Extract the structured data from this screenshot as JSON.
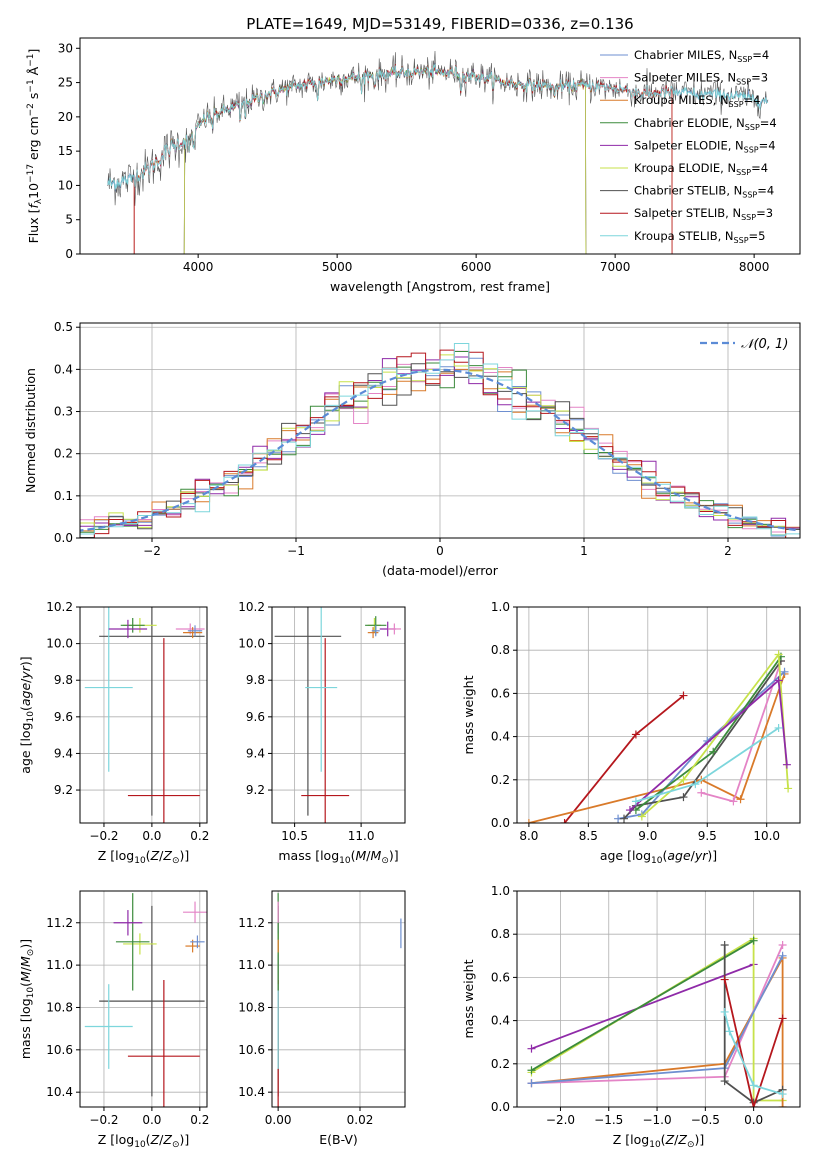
{
  "chart_data": [
    {
      "id": "spectrum",
      "type": "line",
      "title": "PLATE=1649, MJD=53149, FIBERID=0336, z=0.136",
      "xlabel": "wavelength [Angstrom, rest frame]",
      "ylabel": "Flux [fλ10⁻¹⁷ erg cm⁻² s⁻¹ Å⁻¹]",
      "xlim": [
        3150,
        8330
      ],
      "ylim": [
        0,
        31.5
      ],
      "xticks": [
        4000,
        5000,
        6000,
        7000,
        8000
      ],
      "yticks": [
        0,
        5,
        10,
        15,
        20,
        25,
        30
      ],
      "continuum": [
        [
          3350,
          10.2
        ],
        [
          3500,
          10.8
        ],
        [
          3650,
          12.5
        ],
        [
          3800,
          15.5
        ],
        [
          3950,
          17.0
        ],
        [
          4050,
          19.8
        ],
        [
          4200,
          21.0
        ],
        [
          4400,
          22.5
        ],
        [
          4600,
          24.0
        ],
        [
          4800,
          24.8
        ],
        [
          5000,
          25.5
        ],
        [
          5200,
          26.0
        ],
        [
          5400,
          26.3
        ],
        [
          5600,
          26.6
        ],
        [
          5800,
          26.5
        ],
        [
          6000,
          26.0
        ],
        [
          6200,
          25.0
        ],
        [
          6400,
          24.6
        ],
        [
          6600,
          24.4
        ],
        [
          6800,
          24.6
        ],
        [
          7000,
          24.2
        ],
        [
          7200,
          23.4
        ],
        [
          7400,
          23.6
        ],
        [
          7600,
          23.4
        ],
        [
          7800,
          23.2
        ],
        [
          8000,
          22.6
        ],
        [
          8100,
          22.3
        ]
      ],
      "series": [
        {
          "name": "Chabrier MILES, N_SSP=4",
          "label_html": "Chabrier MILES, N<tspan font-size='8' dy='3'>SSP</tspan><tspan dy='-3'>=4</tspan>",
          "color": "#6e8fd0",
          "xrange": [
            3350,
            8100
          ]
        },
        {
          "name": "Salpeter MILES, N_SSP=3",
          "label_html": "Salpeter MILES, N<tspan font-size='8' dy='3'>SSP</tspan><tspan dy='-3'>=3</tspan>",
          "color": "#e484c6",
          "xrange": [
            3540,
            7410
          ]
        },
        {
          "name": "Kroupa MILES, N_SSP=4",
          "label_html": "Kroupa MILES, N<tspan font-size='8' dy='3'>SSP</tspan><tspan dy='-3'>=4</tspan>",
          "color": "#d97a2a",
          "xrange": [
            3540,
            7410
          ]
        },
        {
          "name": "Chabrier ELODIE, N_SSP=4",
          "label_html": "Chabrier ELODIE, N<tspan font-size='8' dy='3'>SSP</tspan><tspan dy='-3'>=4</tspan>",
          "color": "#3c8b3c",
          "xrange": [
            3900,
            6790
          ]
        },
        {
          "name": "Salpeter ELODIE, N_SSP=4",
          "label_html": "Salpeter ELODIE, N<tspan font-size='8' dy='3'>SSP</tspan><tspan dy='-3'>=4</tspan>",
          "color": "#8f2aa8",
          "xrange": [
            3900,
            6790
          ]
        },
        {
          "name": "Kroupa ELODIE, N_SSP=4",
          "label_html": "Kroupa ELODIE, N<tspan font-size='8' dy='3'>SSP</tspan><tspan dy='-3'>=4</tspan>",
          "color": "#c7e24a",
          "xrange": [
            3900,
            6790
          ]
        },
        {
          "name": "Chabrier STELIB, N_SSP=4",
          "label_html": "Chabrier STELIB, N<tspan font-size='8' dy='3'>SSP</tspan><tspan dy='-3'>=4</tspan>",
          "color": "#505050",
          "xrange": [
            3350,
            8100
          ]
        },
        {
          "name": "Salpeter STELIB, N_SSP=3",
          "label_html": "Salpeter STELIB, N<tspan font-size='8' dy='3'>SSP</tspan><tspan dy='-3'>=3</tspan>",
          "color": "#b5171d",
          "xrange": [
            3540,
            7410
          ]
        },
        {
          "name": "Kroupa STELIB, N_SSP=5",
          "label_html": "Kroupa STELIB, N<tspan font-size='8' dy='3'>SSP</tspan><tspan dy='-3'>=5</tspan>",
          "color": "#7dd6dc",
          "xrange": [
            3350,
            8100
          ]
        }
      ],
      "legend": "top-right"
    },
    {
      "id": "residuals",
      "type": "line",
      "xlabel": "(data-model)/error",
      "ylabel": "Normed distribution",
      "xlim": [
        -2.5,
        2.5
      ],
      "ylim": [
        0,
        0.51
      ],
      "xticks": [
        -2,
        -1,
        0,
        1,
        2
      ],
      "yticks": [
        0.0,
        0.1,
        0.2,
        0.3,
        0.4,
        0.5
      ],
      "grid": true,
      "bin_width": 0.1,
      "gaussian": {
        "label": "𝒩(0, 1)",
        "color": "#5b8bd6",
        "style": "dashed"
      },
      "legend": "top-right"
    },
    {
      "id": "age-vs-Z",
      "type": "scatter",
      "xlabel": "Z [log₁₀(Z/Z⊙)]",
      "ylabel": "age  [log₁₀(age/yr)]",
      "xlim": [
        -0.3,
        0.23
      ],
      "ylim": [
        9.02,
        10.2
      ],
      "xticks": [
        -0.2,
        0.0,
        0.2
      ],
      "yticks": [
        9.2,
        9.4,
        9.6,
        9.8,
        10.0,
        10.2
      ],
      "grid": true,
      "points": [
        {
          "x": 0.0,
          "y": 10.04,
          "xerr": 0.22,
          "yerr": 0.98,
          "color": "#505050"
        },
        {
          "x": 0.05,
          "y": 9.17,
          "xerr": 0.15,
          "yerr": 0.86,
          "color": "#b5171d"
        },
        {
          "x": -0.18,
          "y": 9.76,
          "xerr": 0.1,
          "yerr": 0.46,
          "color": "#7dd6dc"
        },
        {
          "x": -0.05,
          "y": 10.1,
          "xerr": 0.07,
          "yerr": 0.04,
          "color": "#c7e24a"
        },
        {
          "x": -0.08,
          "y": 10.1,
          "xerr": 0.05,
          "yerr": 0.04,
          "color": "#3c8b3c"
        },
        {
          "x": -0.1,
          "y": 10.08,
          "xerr": 0.08,
          "yerr": 0.05,
          "color": "#8f2aa8"
        },
        {
          "x": 0.16,
          "y": 10.08,
          "xerr": 0.06,
          "yerr": 0.03,
          "color": "#e484c6"
        },
        {
          "x": 0.17,
          "y": 10.06,
          "xerr": 0.04,
          "yerr": 0.03,
          "color": "#d97a2a"
        },
        {
          "x": 0.18,
          "y": 10.07,
          "xerr": 0.03,
          "yerr": 0.03,
          "color": "#6e8fd0"
        }
      ]
    },
    {
      "id": "age-vs-mass",
      "type": "scatter",
      "xlabel": "mass [log₁₀(M/M⊙)]",
      "ylim": [
        9.02,
        10.2
      ],
      "xlim": [
        10.33,
        11.33
      ],
      "xticks": [
        10.5,
        11.0
      ],
      "yticks": [
        9.2,
        9.4,
        9.6,
        9.8,
        10.0,
        10.2
      ],
      "grid": true,
      "points": [
        {
          "x": 10.6,
          "y": 10.04,
          "xerr": 0.25,
          "yerr": 0.98,
          "color": "#505050"
        },
        {
          "x": 10.73,
          "y": 9.17,
          "xerr": 0.18,
          "yerr": 0.86,
          "color": "#b5171d"
        },
        {
          "x": 10.7,
          "y": 9.76,
          "xerr": 0.12,
          "yerr": 0.46,
          "color": "#7dd6dc"
        },
        {
          "x": 11.1,
          "y": 10.1,
          "xerr": 0.05,
          "yerr": 0.04,
          "color": "#c7e24a"
        },
        {
          "x": 11.11,
          "y": 10.1,
          "xerr": 0.08,
          "yerr": 0.05,
          "color": "#3c8b3c"
        },
        {
          "x": 11.2,
          "y": 10.08,
          "xerr": 0.06,
          "yerr": 0.04,
          "color": "#8f2aa8"
        },
        {
          "x": 11.25,
          "y": 10.08,
          "xerr": 0.05,
          "yerr": 0.03,
          "color": "#e484c6"
        },
        {
          "x": 11.09,
          "y": 10.06,
          "xerr": 0.04,
          "yerr": 0.03,
          "color": "#d97a2a"
        },
        {
          "x": 11.11,
          "y": 10.07,
          "xerr": 0.03,
          "yerr": 0.03,
          "color": "#6e8fd0"
        }
      ]
    },
    {
      "id": "massweight-vs-age",
      "type": "line",
      "xlabel": "age  [log₁₀(age/yr)]",
      "ylabel": "mass weight",
      "xlim": [
        7.9,
        10.28
      ],
      "ylim": [
        0,
        1
      ],
      "xticks": [
        8.0,
        8.5,
        9.0,
        9.5,
        10.0
      ],
      "yticks": [
        0.0,
        0.2,
        0.4,
        0.6,
        0.8,
        1.0
      ],
      "grid": true,
      "series": [
        {
          "color": "#b5171d",
          "points": [
            [
              8.3,
              0.0
            ],
            [
              8.9,
              0.41
            ],
            [
              9.3,
              0.59
            ]
          ]
        },
        {
          "color": "#d97a2a",
          "points": [
            [
              8.0,
              0.0
            ],
            [
              9.45,
              0.2
            ],
            [
              9.78,
              0.11
            ],
            [
              10.15,
              0.69
            ]
          ]
        },
        {
          "color": "#e484c6",
          "points": [
            [
              9.45,
              0.14
            ],
            [
              9.72,
              0.1
            ],
            [
              10.12,
              0.75
            ]
          ]
        },
        {
          "color": "#6e8fd0",
          "points": [
            [
              8.75,
              0.02
            ],
            [
              8.95,
              0.04
            ],
            [
              9.5,
              0.38
            ],
            [
              10.15,
              0.7
            ]
          ]
        },
        {
          "color": "#505050",
          "points": [
            [
              8.8,
              0.02
            ],
            [
              8.9,
              0.08
            ],
            [
              9.3,
              0.12
            ],
            [
              10.12,
              0.75
            ]
          ]
        },
        {
          "color": "#3c8b3c",
          "points": [
            [
              8.9,
              0.06
            ],
            [
              9.55,
              0.33
            ],
            [
              10.12,
              0.77
            ]
          ]
        },
        {
          "color": "#c7e24a",
          "points": [
            [
              8.95,
              0.03
            ],
            [
              9.3,
              0.2
            ],
            [
              10.1,
              0.78
            ],
            [
              10.18,
              0.16
            ]
          ]
        },
        {
          "color": "#8f2aa8",
          "points": [
            [
              8.85,
              0.06
            ],
            [
              10.1,
              0.66
            ],
            [
              10.17,
              0.27
            ]
          ]
        },
        {
          "color": "#7dd6dc",
          "points": [
            [
              8.9,
              0.1
            ],
            [
              9.4,
              0.18
            ],
            [
              10.1,
              0.44
            ]
          ]
        }
      ]
    },
    {
      "id": "mass-vs-Z",
      "type": "scatter",
      "xlabel": "Z [log₁₀(Z/Z⊙)]",
      "ylabel": "mass [log₁₀(M/M⊙)]",
      "xlim": [
        -0.3,
        0.23
      ],
      "ylim": [
        10.33,
        11.35
      ],
      "xticks": [
        -0.2,
        0.0,
        0.2
      ],
      "yticks": [
        10.4,
        10.6,
        10.8,
        11.0,
        11.2
      ],
      "grid": true,
      "points": [
        {
          "x": 0.0,
          "y": 10.83,
          "xerr": 0.22,
          "yerr": 0.45,
          "color": "#505050"
        },
        {
          "x": 0.05,
          "y": 10.57,
          "xerr": 0.15,
          "yerr": 0.36,
          "color": "#b5171d"
        },
        {
          "x": -0.18,
          "y": 10.71,
          "xerr": 0.1,
          "yerr": 0.2,
          "color": "#7dd6dc"
        },
        {
          "x": -0.05,
          "y": 11.1,
          "xerr": 0.07,
          "yerr": 0.05,
          "color": "#c7e24a"
        },
        {
          "x": -0.08,
          "y": 11.11,
          "xerr": 0.07,
          "yerr": 0.23,
          "color": "#3c8b3c"
        },
        {
          "x": -0.1,
          "y": 11.2,
          "xerr": 0.06,
          "yerr": 0.06,
          "color": "#8f2aa8"
        },
        {
          "x": 0.18,
          "y": 11.25,
          "xerr": 0.05,
          "yerr": 0.05,
          "color": "#e484c6"
        },
        {
          "x": 0.17,
          "y": 11.09,
          "xerr": 0.03,
          "yerr": 0.03,
          "color": "#d97a2a"
        },
        {
          "x": 0.19,
          "y": 11.11,
          "xerr": 0.03,
          "yerr": 0.03,
          "color": "#6e8fd0"
        }
      ]
    },
    {
      "id": "mass-vs-ebv",
      "type": "scatter",
      "xlabel": "E(B-V)",
      "xlim": [
        -0.0015,
        0.031
      ],
      "ylim": [
        10.33,
        11.35
      ],
      "xticks": [
        0.0,
        0.02
      ],
      "yticks": [
        10.4,
        10.6,
        10.8,
        11.0,
        11.2
      ],
      "grid": true,
      "points": [
        {
          "x": 0.0,
          "y": 10.83,
          "yerr": 0.45,
          "color": "#505050"
        },
        {
          "x": 0.0,
          "y": 10.57,
          "yerr": 0.36,
          "color": "#b5171d"
        },
        {
          "x": 0.0,
          "y": 10.71,
          "yerr": 0.2,
          "color": "#7dd6dc"
        },
        {
          "x": 0.0,
          "y": 11.1,
          "yerr": 0.05,
          "color": "#c7e24a"
        },
        {
          "x": 0.0,
          "y": 11.11,
          "yerr": 0.23,
          "color": "#3c8b3c"
        },
        {
          "x": 0.0,
          "y": 11.25,
          "yerr": 0.05,
          "color": "#e484c6"
        },
        {
          "x": 0.0,
          "y": 11.09,
          "yerr": 0.03,
          "color": "#d97a2a"
        },
        {
          "x": 0.03,
          "y": 11.15,
          "yerr": 0.07,
          "color": "#6e8fd0"
        }
      ]
    },
    {
      "id": "massweight-vs-Z",
      "type": "line",
      "xlabel": "Z [log₁₀(Z/Z⊙)]",
      "ylabel": "mass weight",
      "xlim": [
        -2.45,
        0.48
      ],
      "ylim": [
        0,
        1
      ],
      "xticks": [
        -2.0,
        -1.5,
        -1.0,
        -0.5,
        0.0
      ],
      "yticks": [
        0.0,
        0.2,
        0.4,
        0.6,
        0.8,
        1.0
      ],
      "grid": true,
      "series": [
        {
          "color": "#8f2aa8",
          "points": [
            [
              -2.3,
              0.27
            ],
            [
              0.0,
              0.66
            ]
          ]
        },
        {
          "color": "#c7e24a",
          "points": [
            [
              -2.3,
              0.16
            ],
            [
              0.0,
              0.78
            ],
            [
              0.0,
              0.03
            ],
            [
              0.3,
              0.03
            ]
          ]
        },
        {
          "color": "#3c8b3c",
          "points": [
            [
              -2.3,
              0.17
            ],
            [
              0.0,
              0.77
            ]
          ]
        },
        {
          "color": "#d97a2a",
          "points": [
            [
              -2.3,
              0.11
            ],
            [
              -0.3,
              0.2
            ],
            [
              0.3,
              0.69
            ],
            [
              0.3,
              0.0
            ]
          ]
        },
        {
          "color": "#e484c6",
          "points": [
            [
              -2.3,
              0.11
            ],
            [
              -0.3,
              0.14
            ],
            [
              0.3,
              0.75
            ]
          ]
        },
        {
          "color": "#6e8fd0",
          "points": [
            [
              -2.3,
              0.11
            ],
            [
              -0.3,
              0.18
            ],
            [
              0.3,
              0.7
            ]
          ]
        },
        {
          "color": "#505050",
          "points": [
            [
              -0.3,
              0.75
            ],
            [
              -0.3,
              0.12
            ],
            [
              0.0,
              0.02
            ],
            [
              0.3,
              0.08
            ]
          ]
        },
        {
          "color": "#b5171d",
          "points": [
            [
              -0.3,
              0.59
            ],
            [
              0.0,
              0.0
            ],
            [
              0.3,
              0.41
            ]
          ]
        },
        {
          "color": "#7dd6dc",
          "points": [
            [
              -0.3,
              0.44
            ],
            [
              -0.25,
              0.35
            ],
            [
              0.0,
              0.1
            ],
            [
              0.3,
              0.06
            ]
          ]
        }
      ]
    }
  ],
  "panel_labels": {
    "title": "PLATE=1649, MJD=53149, FIBERID=0336, z=0.136",
    "spectrum_xlabel": "wavelength [Angstrom, rest frame]",
    "residuals_xlabel": "(data-model)/error",
    "residuals_ylabel": "Normed distribution",
    "gauss_label": "𝒩(0, 1)",
    "mw_ylabel": "mass weight",
    "ebv_xlabel": "E(B-V)"
  }
}
